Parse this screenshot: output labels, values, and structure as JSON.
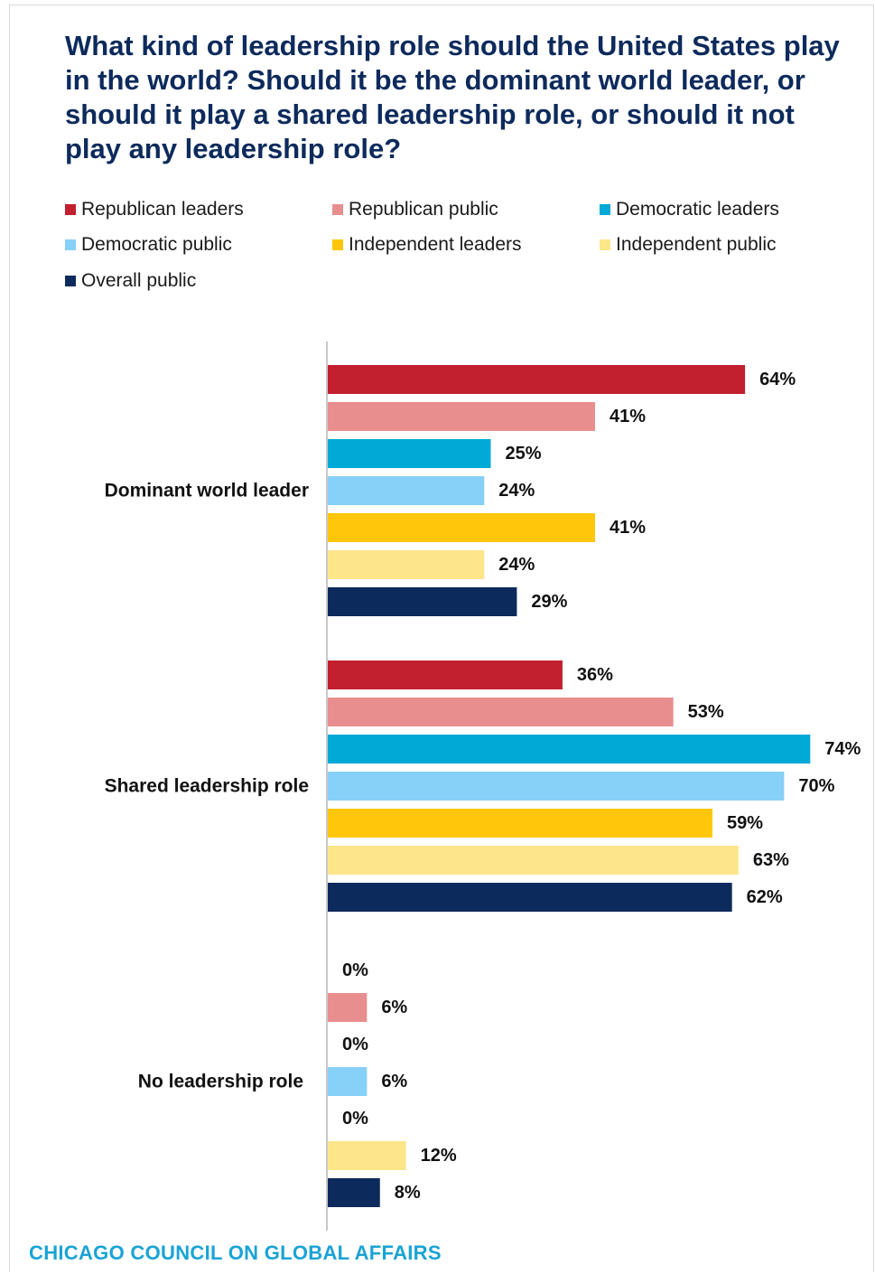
{
  "title": "What kind of leadership role should the United States play in the world? Should it be the dominant world leader, or should it play a shared leadership role, or should it not play any leadership role?",
  "source": "CHICAGO COUNCIL ON GLOBAL AFFAIRS",
  "legend": [
    {
      "label": "Republican leaders",
      "color": "#c21f2f"
    },
    {
      "label": "Republican public",
      "color": "#e88e8e"
    },
    {
      "label": "Democratic leaders",
      "color": "#00a9d6"
    },
    {
      "label": "Democratic public",
      "color": "#87d0f7"
    },
    {
      "label": "Independent leaders",
      "color": "#ffc60b"
    },
    {
      "label": "Independent public",
      "color": "#fde68a"
    },
    {
      "label": "Overall public",
      "color": "#0d2a5c"
    }
  ],
  "chart_data": {
    "type": "bar",
    "orientation": "horizontal",
    "categories": [
      "Dominant world leader",
      "Shared leadership role",
      "No leadership role"
    ],
    "value_suffix": "%",
    "xlim": [
      0,
      100
    ],
    "grid": false,
    "legend_position": "top",
    "series": [
      {
        "name": "Republican leaders",
        "color": "#c21f2f",
        "values": [
          64,
          36,
          0
        ]
      },
      {
        "name": "Republican public",
        "color": "#e88e8e",
        "values": [
          41,
          53,
          6
        ]
      },
      {
        "name": "Democratic leaders",
        "color": "#00a9d6",
        "values": [
          25,
          74,
          0
        ]
      },
      {
        "name": "Democratic public",
        "color": "#87d0f7",
        "values": [
          24,
          70,
          6
        ]
      },
      {
        "name": "Independent leaders",
        "color": "#ffc60b",
        "values": [
          41,
          59,
          0
        ]
      },
      {
        "name": "Independent public",
        "color": "#fde68a",
        "values": [
          24,
          63,
          12
        ]
      },
      {
        "name": "Overall public",
        "color": "#0d2a5c",
        "values": [
          29,
          62,
          8
        ]
      }
    ]
  }
}
